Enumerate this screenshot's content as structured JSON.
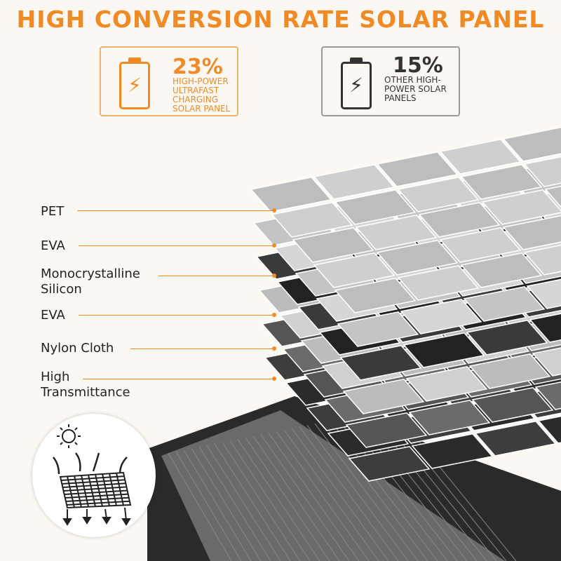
{
  "title": "HIGH CONVERSION RATE SOLAR PANEL",
  "comparison": [
    {
      "percent": "23%",
      "description": [
        "HIGH-POWER",
        "ULTRAFAST",
        "CHARGING",
        "SOLAR PANEL"
      ],
      "color": "#f08a24",
      "icon": "battery-charging-icon"
    },
    {
      "percent": "15%",
      "description": [
        "OTHER HIGH-",
        "POWER SOLAR",
        "PANELS"
      ],
      "color": "#333333",
      "icon": "battery-charging-icon"
    }
  ],
  "layers": [
    {
      "label": [
        "PET"
      ]
    },
    {
      "label": [
        "EVA"
      ]
    },
    {
      "label": [
        "Monocrystalline",
        "Silicon"
      ]
    },
    {
      "label": [
        "EVA"
      ]
    },
    {
      "label": [
        "Nylon Cloth"
      ]
    },
    {
      "label": [
        "High",
        "Transmittance"
      ]
    }
  ],
  "accent_color": "#f08a24"
}
